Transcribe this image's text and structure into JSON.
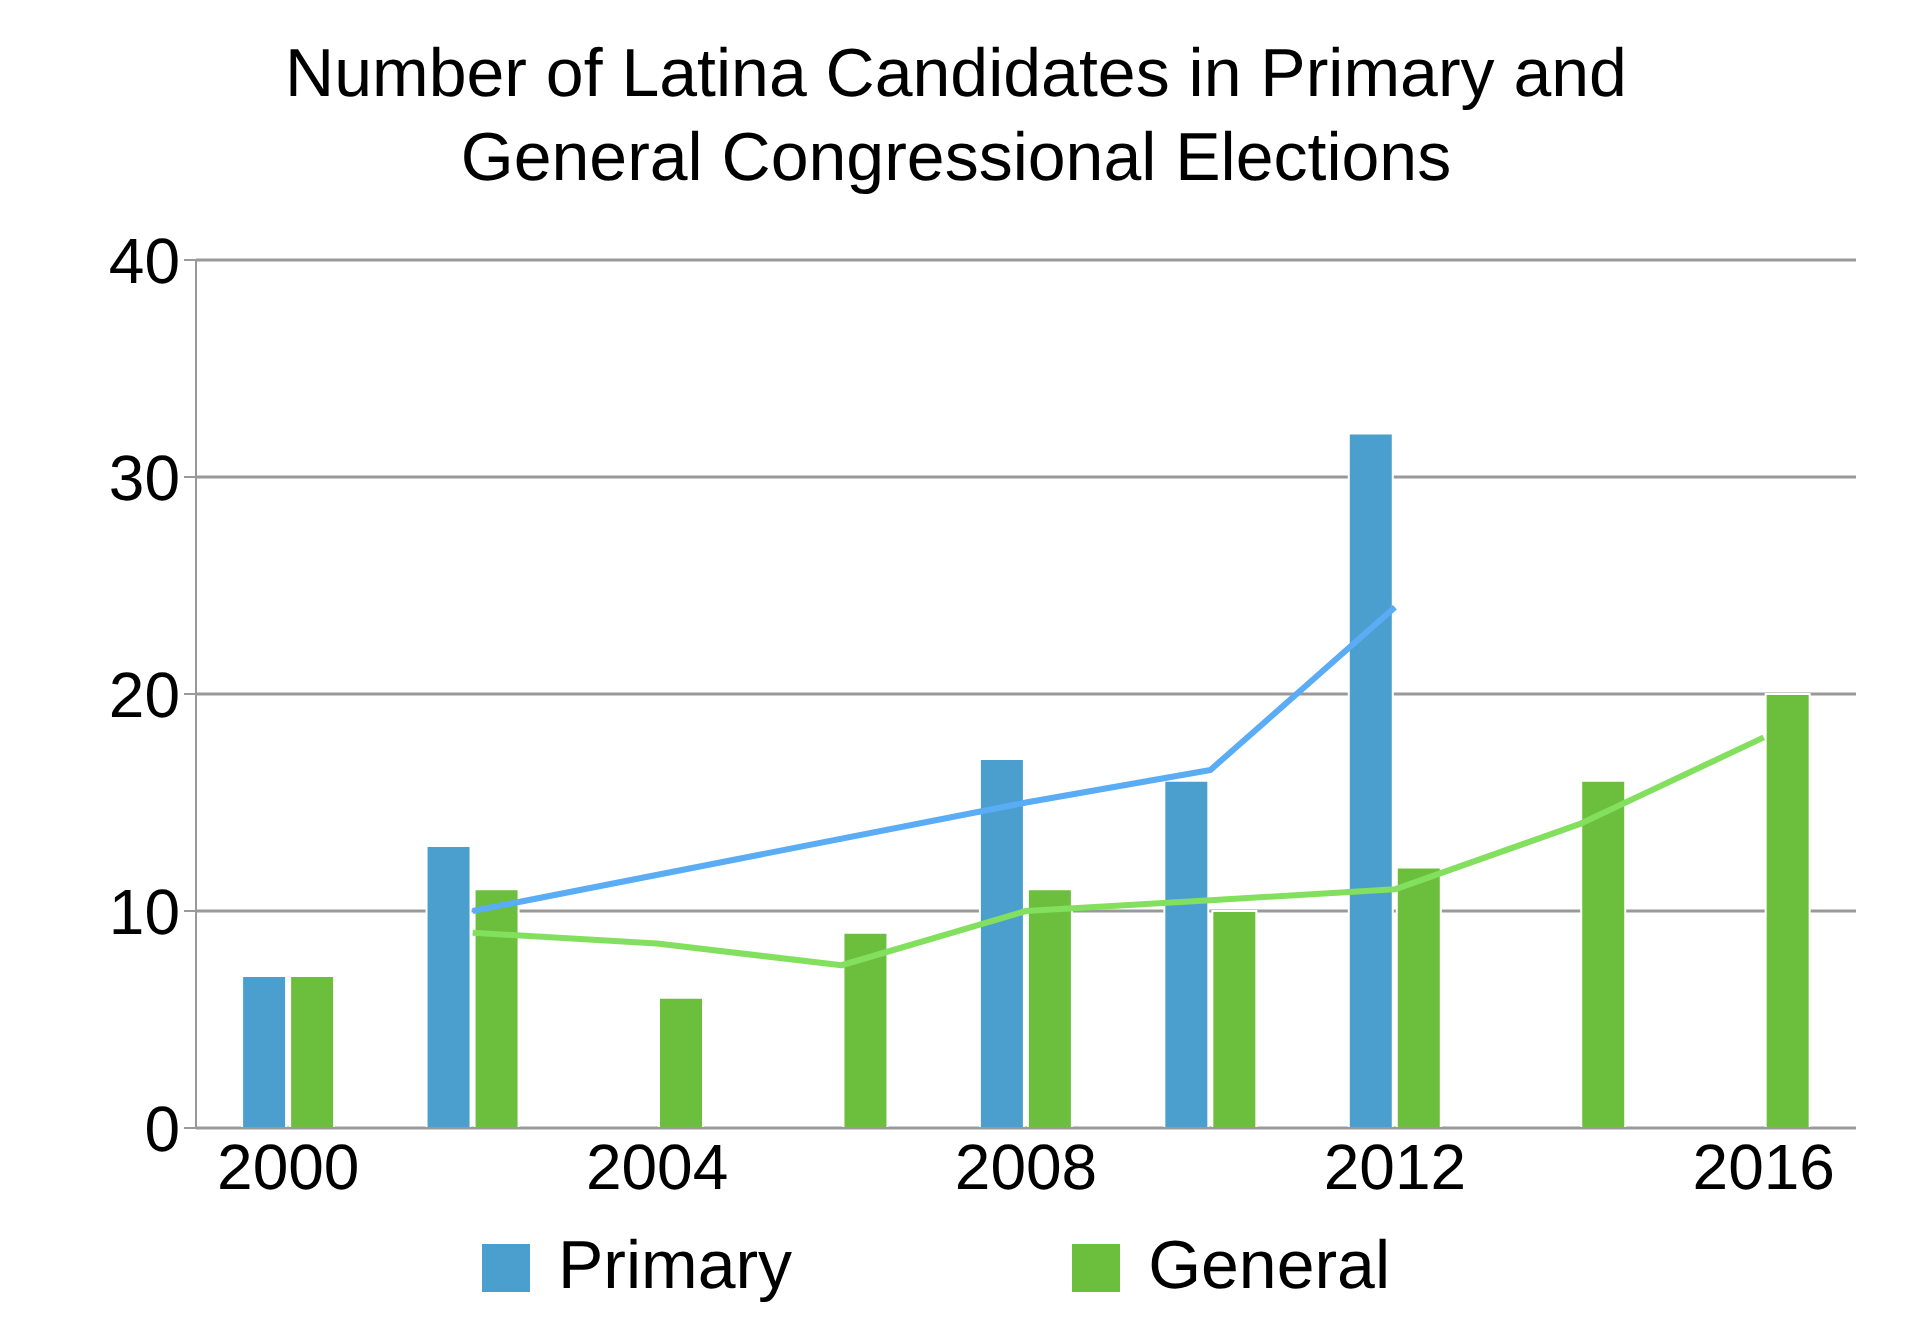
{
  "chart_data": {
    "type": "bar",
    "title": "Number of Latina Candidates in Primary and General Congressional Elections",
    "categories": [
      "2000",
      null,
      "2004",
      null,
      "2008",
      null,
      "2012",
      null,
      "2016"
    ],
    "series": [
      {
        "name": "Primary",
        "color": "#4a9fcf",
        "values": [
          7,
          13,
          null,
          null,
          17,
          16,
          32,
          null,
          null
        ]
      },
      {
        "name": "General",
        "color": "#6cbf3c",
        "values": [
          7,
          11,
          6,
          9,
          11,
          10,
          12,
          16,
          20
        ]
      },
      {
        "type": "line",
        "color": "#5aacf5",
        "values": [
          null,
          10,
          null,
          null,
          15,
          16.5,
          24,
          null,
          null
        ]
      },
      {
        "type": "line",
        "color": "#82e05e",
        "values": [
          null,
          9,
          8.5,
          7.5,
          10,
          10.5,
          11,
          14,
          18
        ]
      }
    ],
    "ylim": [
      0,
      40
    ],
    "yticks": [
      0,
      10,
      20,
      30,
      40
    ],
    "grid": "y",
    "legend": "bottom"
  }
}
